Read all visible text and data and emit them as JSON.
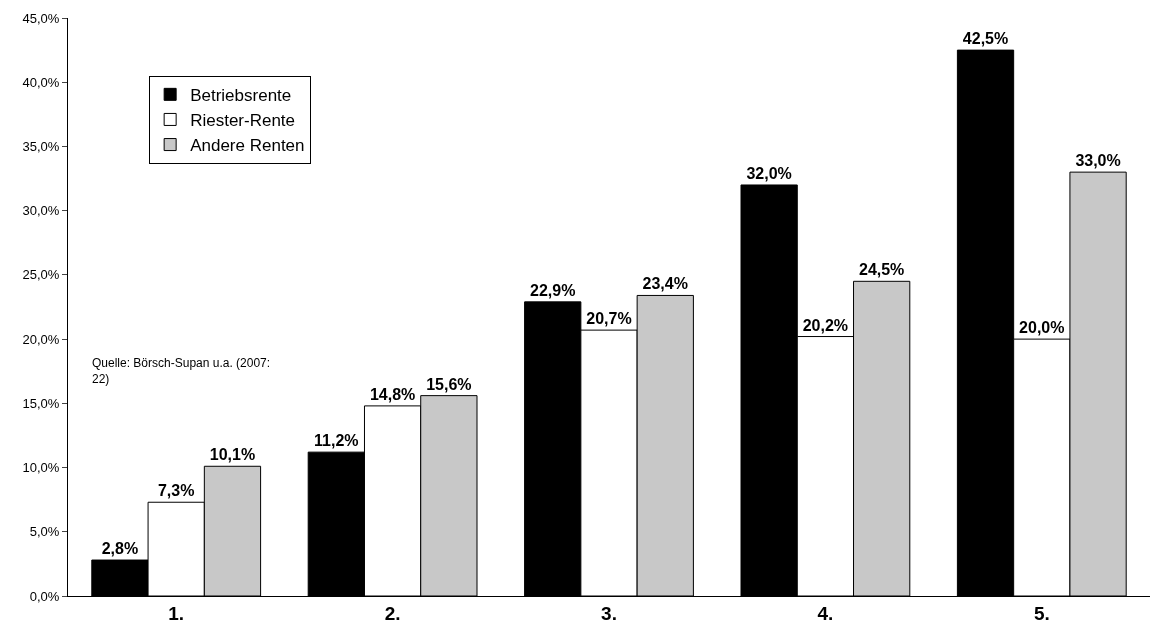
{
  "chart_data": {
    "type": "bar",
    "categories": [
      "1.",
      "2.",
      "3.",
      "4.",
      "5."
    ],
    "series": [
      {
        "name": "Betriebsrente",
        "color": "#000000",
        "values": [
          2.8,
          11.2,
          22.9,
          32.0,
          42.5
        ],
        "value_labels": [
          "2,8%",
          "11,2%",
          "22,9%",
          "32,0%",
          "42,5%"
        ]
      },
      {
        "name": "Riester-Rente",
        "color": "#ffffff",
        "values": [
          7.3,
          14.8,
          20.7,
          20.2,
          20.0
        ],
        "value_labels": [
          "7,3%",
          "14,8%",
          "20,7%",
          "20,2%",
          "20,0%"
        ]
      },
      {
        "name": "Andere Renten",
        "color": "#c8c8c8",
        "values": [
          10.1,
          15.6,
          23.4,
          24.5,
          33.0
        ],
        "value_labels": [
          "10,1%",
          "15,6%",
          "23,4%",
          "24,5%",
          "33,0%"
        ]
      }
    ],
    "ylim": [
      0,
      45
    ],
    "yticks": [
      {
        "value": 0,
        "label": "0,0%"
      },
      {
        "value": 5,
        "label": "5,0%"
      },
      {
        "value": 10,
        "label": "10,0%"
      },
      {
        "value": 15,
        "label": "15,0%"
      },
      {
        "value": 20,
        "label": "20,0%"
      },
      {
        "value": 25,
        "label": "25,0%"
      },
      {
        "value": 30,
        "label": "30,0%"
      },
      {
        "value": 35,
        "label": "35,0%"
      },
      {
        "value": 40,
        "label": "40,0%"
      },
      {
        "value": 45,
        "label": "45,0%"
      }
    ],
    "annotations": [
      "Quelle: Börsch-Supan u.a. (2007: 22)"
    ],
    "legend": "top left"
  }
}
